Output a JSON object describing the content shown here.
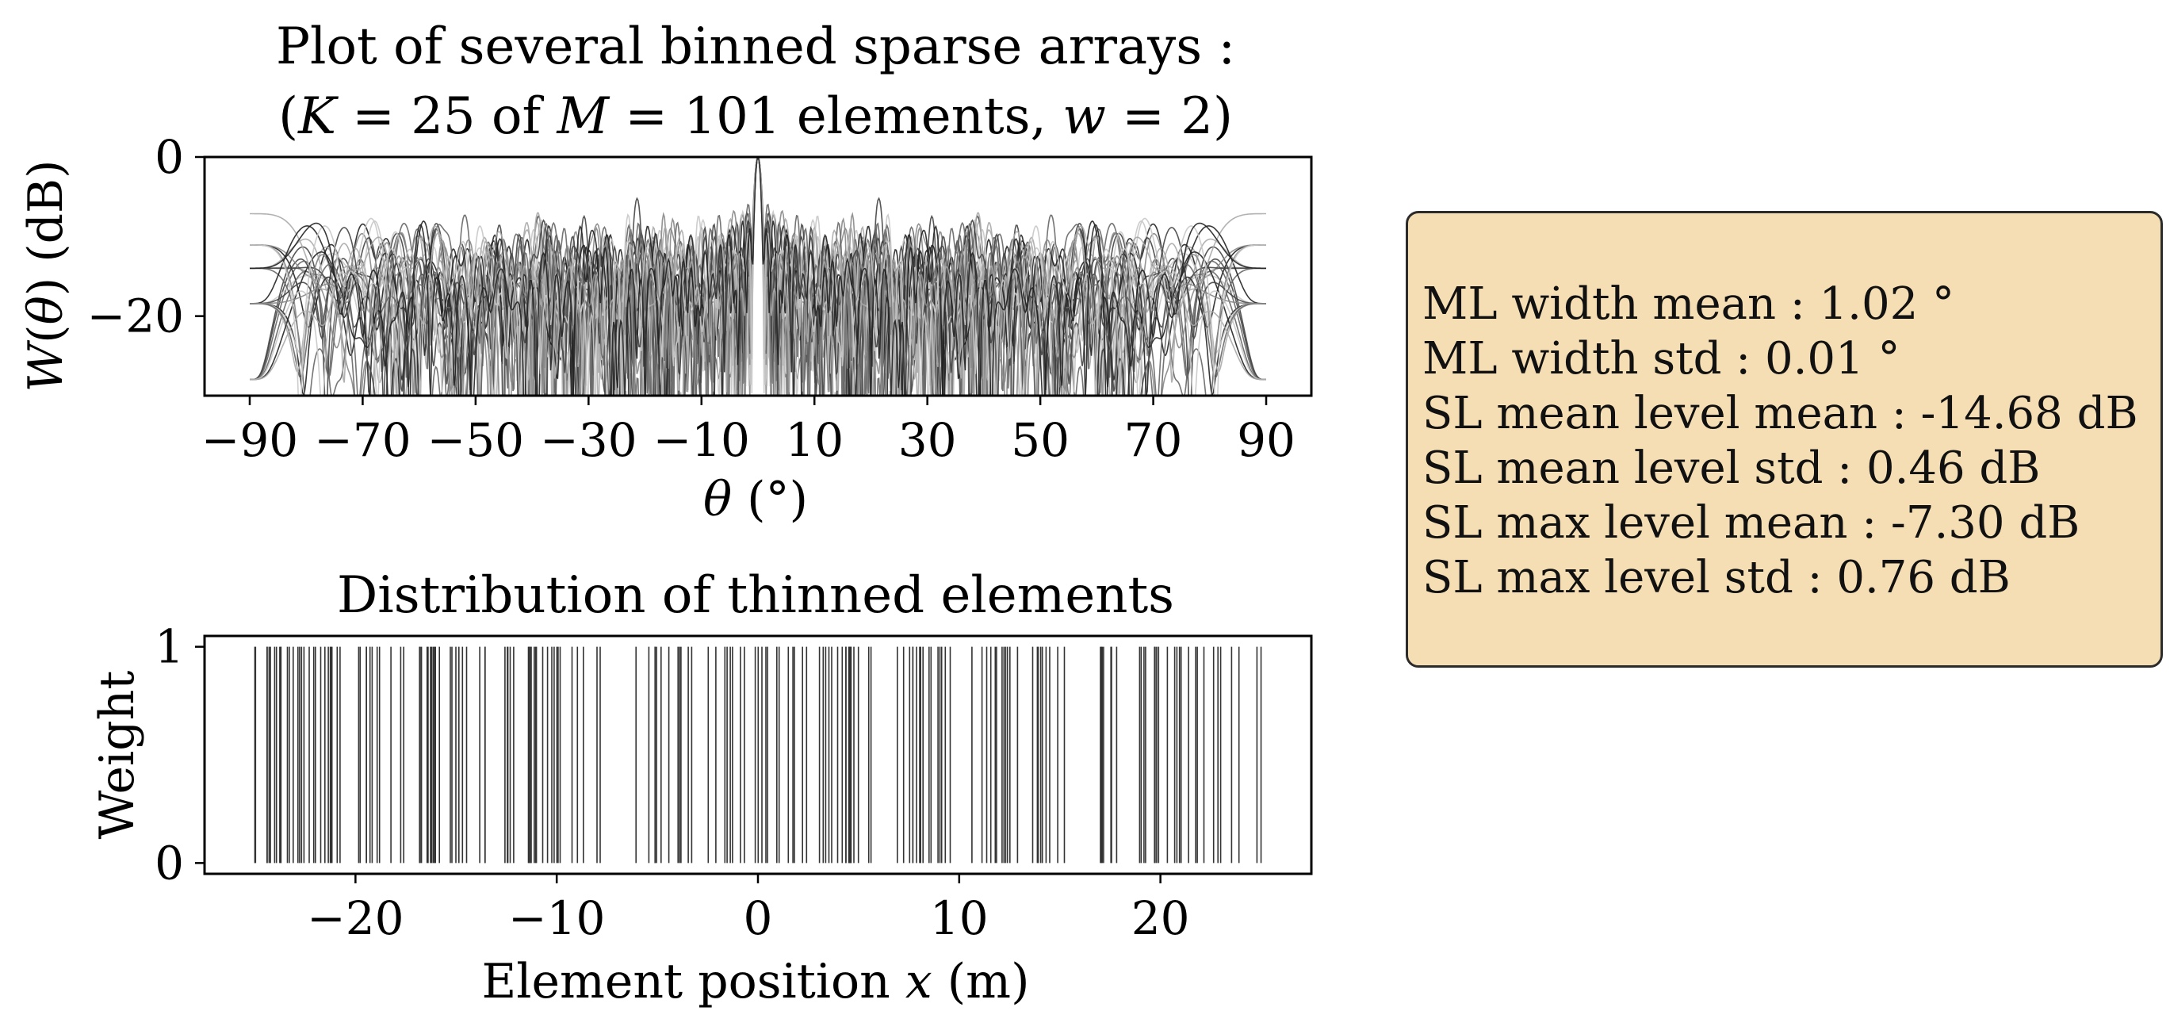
{
  "chart_data": [
    {
      "type": "line",
      "title": "Plot of several binned sparse arrays :",
      "subtitle_parts": [
        "(",
        "K",
        " = 25 of ",
        "M",
        " = 101 elements, ",
        "w",
        " = 2)"
      ],
      "xlabel_parts": [
        "θ",
        " (°)"
      ],
      "ylabel_parts": [
        "W",
        "(",
        "θ",
        ") (dB)"
      ],
      "xlim": [
        -98,
        98
      ],
      "ylim": [
        -30,
        0
      ],
      "x_ticks": [
        "−90",
        "−70",
        "−50",
        "−30",
        "−10",
        "10",
        "30",
        "50",
        "70",
        "90"
      ],
      "x_tick_values": [
        -90,
        -70,
        -50,
        -30,
        -10,
        10,
        30,
        50,
        70,
        90
      ],
      "y_ticks": [
        "0",
        "−20"
      ],
      "y_tick_values": [
        0,
        -20
      ],
      "series_count": 25,
      "main_lobe": {
        "x": 0,
        "y": 0,
        "width_deg": 1.02
      },
      "sidelobe_mean_level_db": -14.68,
      "sidelobe_max_level_db": -7.3,
      "line_colors": [
        "#222222",
        "#444444",
        "#666666",
        "#888888",
        "#aaaaaa",
        "#c8c8c8"
      ]
    },
    {
      "type": "bar",
      "title": "Distribution of thinned elements",
      "xlabel_parts": [
        "Element position ",
        "x",
        " (m)"
      ],
      "ylabel": "Weight",
      "xlim": [
        -27.5,
        27.5
      ],
      "ylim": [
        -0.05,
        1.05
      ],
      "x_ticks": [
        "−20",
        "−10",
        "0",
        "10",
        "20"
      ],
      "x_tick_values": [
        -20,
        -10,
        0,
        10,
        20
      ],
      "y_ticks": [
        "0",
        "1"
      ],
      "y_tick_values": [
        0,
        1
      ],
      "x_range": [
        -25,
        25
      ],
      "element_count": 101,
      "weight": 1,
      "stem_color": "#333333"
    }
  ],
  "stats": {
    "lines": [
      "ML width mean : 1.02 °",
      "ML width std : 0.01 °",
      "SL mean level mean : -14.68 dB",
      "SL mean level std : 0.46 dB",
      "SL max level mean : -7.30 dB",
      "SL max level std : 0.76 dB"
    ],
    "background": "#f5deb3"
  }
}
